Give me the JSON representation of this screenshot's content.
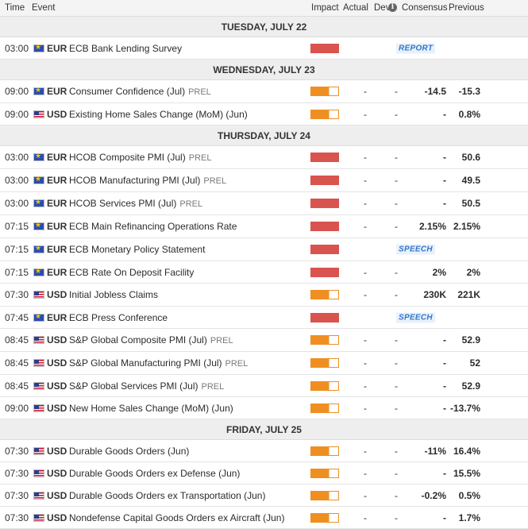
{
  "header": {
    "time": "Time",
    "event": "Event",
    "impact": "Impact",
    "actual": "Actual",
    "dev": "Dev",
    "info_icon": "i",
    "consensus": "Consensus",
    "previous": "Previous"
  },
  "days": [
    {
      "label": "TUESDAY, JULY 22",
      "events": [
        {
          "time": "03:00",
          "currency": "EUR",
          "name": "ECB Bank Lending Survey",
          "prel": "",
          "impact": "high",
          "actual": "",
          "dev": "",
          "consensus": "",
          "previous": "",
          "tag": "REPORT"
        }
      ]
    },
    {
      "label": "WEDNESDAY, JULY 23",
      "events": [
        {
          "time": "09:00",
          "currency": "EUR",
          "name": "Consumer Confidence (Jul)",
          "prel": "PREL",
          "impact": "med",
          "actual": "-",
          "dev": "-",
          "consensus": "-14.5",
          "previous": "-15.3",
          "tag": ""
        },
        {
          "time": "09:00",
          "currency": "USD",
          "name": "Existing Home Sales Change (MoM) (Jun)",
          "prel": "",
          "impact": "med",
          "actual": "-",
          "dev": "-",
          "consensus": "-",
          "previous": "0.8%",
          "tag": ""
        }
      ]
    },
    {
      "label": "THURSDAY, JULY 24",
      "events": [
        {
          "time": "03:00",
          "currency": "EUR",
          "name": "HCOB Composite PMI (Jul)",
          "prel": "PREL",
          "impact": "high",
          "actual": "-",
          "dev": "-",
          "consensus": "-",
          "previous": "50.6",
          "tag": ""
        },
        {
          "time": "03:00",
          "currency": "EUR",
          "name": "HCOB Manufacturing PMI (Jul)",
          "prel": "PREL",
          "impact": "high",
          "actual": "-",
          "dev": "-",
          "consensus": "-",
          "previous": "49.5",
          "tag": ""
        },
        {
          "time": "03:00",
          "currency": "EUR",
          "name": "HCOB Services PMI (Jul)",
          "prel": "PREL",
          "impact": "high",
          "actual": "-",
          "dev": "-",
          "consensus": "-",
          "previous": "50.5",
          "tag": ""
        },
        {
          "time": "07:15",
          "currency": "EUR",
          "name": "ECB Main Refinancing Operations Rate",
          "prel": "",
          "impact": "high",
          "actual": "-",
          "dev": "-",
          "consensus": "2.15%",
          "previous": "2.15%",
          "tag": ""
        },
        {
          "time": "07:15",
          "currency": "EUR",
          "name": "ECB Monetary Policy Statement",
          "prel": "",
          "impact": "high",
          "actual": "",
          "dev": "",
          "consensus": "",
          "previous": "",
          "tag": "SPEECH"
        },
        {
          "time": "07:15",
          "currency": "EUR",
          "name": "ECB Rate On Deposit Facility",
          "prel": "",
          "impact": "high",
          "actual": "-",
          "dev": "-",
          "consensus": "2%",
          "previous": "2%",
          "tag": ""
        },
        {
          "time": "07:30",
          "currency": "USD",
          "name": "Initial Jobless Claims",
          "prel": "",
          "impact": "med",
          "actual": "-",
          "dev": "-",
          "consensus": "230K",
          "previous": "221K",
          "tag": ""
        },
        {
          "time": "07:45",
          "currency": "EUR",
          "name": "ECB Press Conference",
          "prel": "",
          "impact": "high",
          "actual": "",
          "dev": "",
          "consensus": "",
          "previous": "",
          "tag": "SPEECH"
        },
        {
          "time": "08:45",
          "currency": "USD",
          "name": "S&P Global Composite PMI (Jul)",
          "prel": "PREL",
          "impact": "med",
          "actual": "-",
          "dev": "-",
          "consensus": "-",
          "previous": "52.9",
          "tag": ""
        },
        {
          "time": "08:45",
          "currency": "USD",
          "name": "S&P Global Manufacturing PMI (Jul)",
          "prel": "PREL",
          "impact": "med",
          "actual": "-",
          "dev": "-",
          "consensus": "-",
          "previous": "52",
          "tag": ""
        },
        {
          "time": "08:45",
          "currency": "USD",
          "name": "S&P Global Services PMI (Jul)",
          "prel": "PREL",
          "impact": "med",
          "actual": "-",
          "dev": "-",
          "consensus": "-",
          "previous": "52.9",
          "tag": ""
        },
        {
          "time": "09:00",
          "currency": "USD",
          "name": "New Home Sales Change (MoM) (Jun)",
          "prel": "",
          "impact": "med",
          "actual": "-",
          "dev": "-",
          "consensus": "-",
          "previous": "-13.7%",
          "tag": ""
        }
      ]
    },
    {
      "label": "FRIDAY, JULY 25",
      "events": [
        {
          "time": "07:30",
          "currency": "USD",
          "name": "Durable Goods Orders (Jun)",
          "prel": "",
          "impact": "med",
          "actual": "-",
          "dev": "-",
          "consensus": "-11%",
          "previous": "16.4%",
          "tag": ""
        },
        {
          "time": "07:30",
          "currency": "USD",
          "name": "Durable Goods Orders ex Defense (Jun)",
          "prel": "",
          "impact": "med",
          "actual": "-",
          "dev": "-",
          "consensus": "-",
          "previous": "15.5%",
          "tag": ""
        },
        {
          "time": "07:30",
          "currency": "USD",
          "name": "Durable Goods Orders ex Transportation (Jun)",
          "prel": "",
          "impact": "med",
          "actual": "-",
          "dev": "-",
          "consensus": "-0.2%",
          "previous": "0.5%",
          "tag": ""
        },
        {
          "time": "07:30",
          "currency": "USD",
          "name": "Nondefense Capital Goods Orders ex Aircraft (Jun)",
          "prel": "",
          "impact": "med",
          "actual": "-",
          "dev": "-",
          "consensus": "-",
          "previous": "1.7%",
          "tag": ""
        }
      ]
    }
  ],
  "colors": {
    "high_impact": "#d9534f",
    "medium_impact": "#ef8f22",
    "tag_text": "#3575c9"
  }
}
